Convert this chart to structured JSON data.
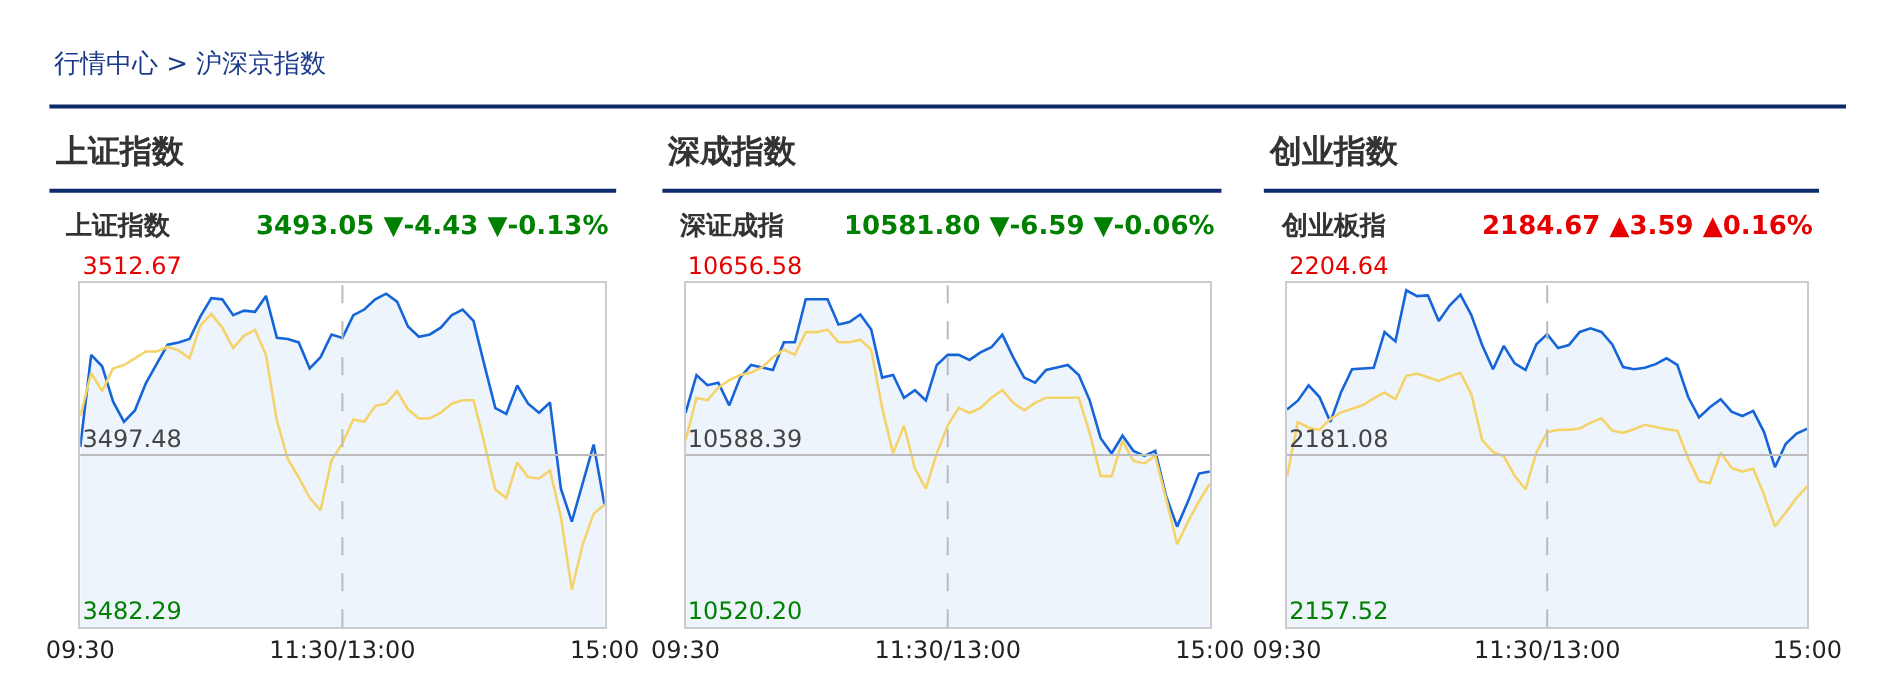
{
  "chart_data": [
    {
      "type": "line",
      "title": "上证指数",
      "subtitle": "上证指数",
      "annotations": [
        "行情中心 > 沪深京指数",
        "3493.05 ▼-4.43 ▼-0.13%"
      ],
      "categories": [
        "09:30",
        null,
        null,
        null,
        null,
        null,
        null,
        null,
        null,
        null,
        null,
        null,
        null,
        null,
        null,
        null,
        null,
        null,
        null,
        null,
        null,
        null,
        null,
        null,
        "11:30/13:00",
        null,
        null,
        null,
        null,
        null,
        null,
        null,
        null,
        null,
        null,
        null,
        null,
        null,
        null,
        null,
        null,
        null,
        null,
        null,
        null,
        null,
        null,
        null,
        "15:00"
      ],
      "ylim": [
        3482.29,
        3512.67
      ],
      "yticks": [
        {
          "value": 3482.29,
          "label": "3482.29"
        },
        {
          "value": 3497.48,
          "label": "3497.48"
        },
        {
          "value": 3512.67,
          "label": "3512.67"
        }
      ],
      "ref_lines": [
        {
          "axis": "y",
          "value": 3497.48,
          "color": "#bbbbbb"
        },
        {
          "axis": "x",
          "value": "11:30/13:00",
          "color": "#bbbbbb",
          "line_style": "dashed"
        }
      ],
      "series": [
        {
          "type": "area",
          "color": "#1565d8",
          "values": [
            3498.2,
            3506.3,
            3505.3,
            3502.2,
            3500.4,
            3501.4,
            3503.8,
            3505.5,
            3507.2,
            3507.4,
            3507.7,
            3509.7,
            3511.3,
            3511.2,
            3509.8,
            3510.2,
            3510.1,
            3511.5,
            3507.8,
            3507.7,
            3507.4,
            3505.1,
            3506.1,
            3508.1,
            3507.8,
            3509.8,
            3510.3,
            3511.2,
            3511.7,
            3511.0,
            3508.8,
            3507.9,
            3508.1,
            3508.7,
            3509.8,
            3510.3,
            3509.3,
            3505.4,
            3501.6,
            3501.1,
            3503.6,
            3502.0,
            3501.2,
            3502.1,
            3494.5,
            3491.6,
            3495.0,
            3498.4,
            3493.05
          ]
        },
        {
          "color": "#f5d36b",
          "values": [
            3500.9,
            3504.7,
            3503.1,
            3505.1,
            3505.4,
            3506.0,
            3506.6,
            3506.6,
            3507.0,
            3506.7,
            3506.0,
            3508.9,
            3509.9,
            3508.7,
            3506.9,
            3508.0,
            3508.5,
            3506.3,
            3500.5,
            3497.1,
            3495.5,
            3493.7,
            3492.6,
            3497.0,
            3498.5,
            3500.6,
            3500.4,
            3501.8,
            3502.0,
            3503.1,
            3501.5,
            3500.7,
            3500.7,
            3501.2,
            3502.0,
            3502.3,
            3502.3,
            3498.5,
            3494.4,
            3493.7,
            3496.8,
            3495.5,
            3495.4,
            3496.1,
            3492.0,
            3485.6,
            3489.6,
            3492.3,
            3493.1
          ]
        }
      ]
    },
    {
      "type": "line",
      "title": "深成指数",
      "subtitle": "深证成指",
      "annotations": [
        "10581.80 ▼-6.59 ▼-0.06%"
      ],
      "categories": [
        "09:30",
        null,
        null,
        null,
        null,
        null,
        null,
        null,
        null,
        null,
        null,
        null,
        null,
        null,
        null,
        null,
        null,
        null,
        null,
        null,
        null,
        null,
        null,
        null,
        "11:30/13:00",
        null,
        null,
        null,
        null,
        null,
        null,
        null,
        null,
        null,
        null,
        null,
        null,
        null,
        null,
        null,
        null,
        null,
        null,
        null,
        null,
        null,
        null,
        null,
        "15:00"
      ],
      "ylim": [
        10520.2,
        10656.58
      ],
      "yticks": [
        {
          "value": 10520.2,
          "label": "10520.20"
        },
        {
          "value": 10588.39,
          "label": "10588.39"
        },
        {
          "value": 10656.58,
          "label": "10656.58"
        }
      ],
      "ref_lines": [
        {
          "axis": "y",
          "value": 10588.39,
          "color": "#bbbbbb"
        },
        {
          "axis": "x",
          "value": "11:30/13:00",
          "color": "#bbbbbb",
          "line_style": "dashed"
        }
      ],
      "series": [
        {
          "type": "area",
          "color": "#1565d8",
          "values": [
            10605,
            10620,
            10616,
            10617,
            10608,
            10619,
            10624,
            10623,
            10622,
            10633,
            10633,
            10650,
            10650,
            10650,
            10640,
            10641,
            10644,
            10638,
            10619,
            10620,
            10611,
            10614,
            10610,
            10624,
            10628,
            10628,
            10626,
            10629,
            10631,
            10636,
            10627,
            10619,
            10617,
            10622,
            10623,
            10624,
            10620,
            10610,
            10595,
            10589,
            10596,
            10590,
            10588,
            10590,
            10572,
            10560,
            10570,
            10581,
            10581.8
          ]
        },
        {
          "color": "#f5d36b",
          "values": [
            10594,
            10611,
            10610,
            10615,
            10618,
            10620,
            10621,
            10623,
            10627,
            10630,
            10628,
            10637,
            10637,
            10638,
            10633,
            10633,
            10634,
            10630,
            10607,
            10589,
            10600,
            10583,
            10575,
            10589,
            10600,
            10607,
            10605,
            10607,
            10611,
            10614,
            10609,
            10606,
            10609,
            10611,
            10611,
            10611,
            10611,
            10597,
            10580,
            10580,
            10594,
            10586,
            10585,
            10588,
            10571,
            10553,
            10562,
            10570,
            10577
          ]
        }
      ]
    },
    {
      "type": "line",
      "title": "创业指数",
      "subtitle": "创业板指",
      "annotations": [
        "2184.67 ▲3.59 ▲0.16%"
      ],
      "categories": [
        "09:30",
        null,
        null,
        null,
        null,
        null,
        null,
        null,
        null,
        null,
        null,
        null,
        null,
        null,
        null,
        null,
        null,
        null,
        null,
        null,
        null,
        null,
        null,
        null,
        "11:30/13:00",
        null,
        null,
        null,
        null,
        null,
        null,
        null,
        null,
        null,
        null,
        null,
        null,
        null,
        null,
        null,
        null,
        null,
        null,
        null,
        null,
        null,
        null,
        null,
        "15:00"
      ],
      "ylim": [
        2157.52,
        2204.64
      ],
      "yticks": [
        {
          "value": 2157.52,
          "label": "2157.52"
        },
        {
          "value": 2181.08,
          "label": "2181.08"
        },
        {
          "value": 2204.64,
          "label": "2204.64"
        }
      ],
      "ref_lines": [
        {
          "axis": "y",
          "value": 2181.08,
          "color": "#bbbbbb"
        },
        {
          "axis": "x",
          "value": "11:30/13:00",
          "color": "#bbbbbb",
          "line_style": "dashed"
        }
      ],
      "series": [
        {
          "type": "area",
          "color": "#1565d8",
          "values": [
            2187.3,
            2188.5,
            2190.6,
            2189.0,
            2185.6,
            2189.7,
            2192.8,
            2192.9,
            2193.0,
            2197.9,
            2196.6,
            2203.6,
            2202.8,
            2202.9,
            2199.4,
            2201.5,
            2203.0,
            2200.2,
            2196.1,
            2192.8,
            2196.0,
            2193.6,
            2192.7,
            2196.2,
            2197.6,
            2195.7,
            2196.1,
            2197.9,
            2198.4,
            2197.9,
            2196.2,
            2193.1,
            2192.8,
            2193.0,
            2193.5,
            2194.3,
            2193.4,
            2189.0,
            2186.2,
            2187.6,
            2188.7,
            2187.0,
            2186.4,
            2187.1,
            2184.2,
            2179.4,
            2182.6,
            2184.0,
            2184.67
          ]
        },
        {
          "color": "#f5d36b",
          "values": [
            2178.1,
            2185.6,
            2184.8,
            2184.5,
            2186.0,
            2186.9,
            2187.4,
            2187.9,
            2188.8,
            2189.6,
            2188.7,
            2191.9,
            2192.2,
            2191.7,
            2191.2,
            2191.8,
            2192.3,
            2189.4,
            2183.1,
            2181.5,
            2180.9,
            2178.2,
            2176.4,
            2181.4,
            2184.2,
            2184.5,
            2184.5,
            2184.7,
            2185.5,
            2186.1,
            2184.4,
            2184.1,
            2184.6,
            2185.2,
            2184.9,
            2184.6,
            2184.4,
            2180.6,
            2177.5,
            2177.2,
            2181.4,
            2179.3,
            2178.8,
            2179.2,
            2175.6,
            2171.3,
            2173.2,
            2175.2,
            2176.8
          ]
        }
      ]
    }
  ]
}
